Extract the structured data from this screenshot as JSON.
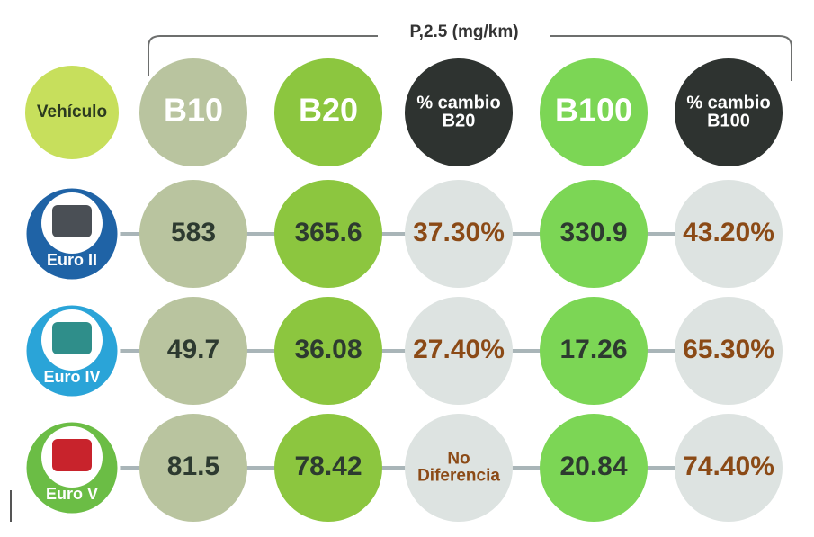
{
  "header": {
    "label": "P,2.5 (mg/km)"
  },
  "columns": [
    {
      "lines": [
        "Vehículo"
      ]
    },
    {
      "lines": [
        "B10"
      ]
    },
    {
      "lines": [
        "B20"
      ]
    },
    {
      "lines": [
        "% cambio",
        "B20"
      ]
    },
    {
      "lines": [
        "B100"
      ]
    },
    {
      "lines": [
        "% cambio",
        "B100"
      ]
    }
  ],
  "rows": [
    {
      "vehicle": "Euro II",
      "cells": [
        [
          "583"
        ],
        [
          "365.6"
        ],
        [
          "37.30%"
        ],
        [
          "330.9"
        ],
        [
          "43.20%"
        ]
      ]
    },
    {
      "vehicle": "Euro IV",
      "cells": [
        [
          "49.7"
        ],
        [
          "36.08"
        ],
        [
          "27.40%"
        ],
        [
          "17.26"
        ],
        [
          "65.30%"
        ]
      ]
    },
    {
      "vehicle": "Euro V",
      "cells": [
        [
          "81.5"
        ],
        [
          "78.42"
        ],
        [
          "No",
          "Diferencia"
        ],
        [
          "20.84"
        ],
        [
          "74.40%"
        ]
      ]
    }
  ]
}
